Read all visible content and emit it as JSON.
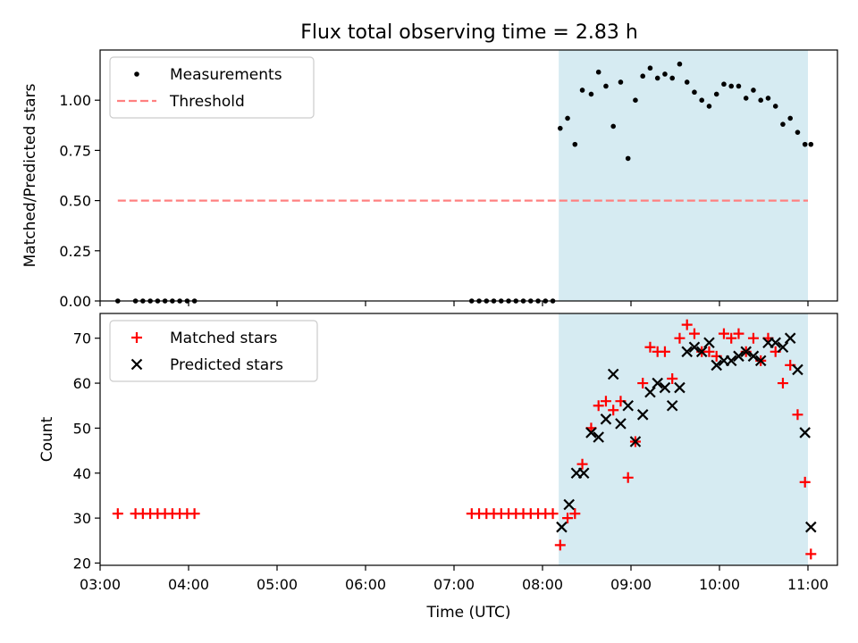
{
  "figure": {
    "title": "Flux total observing time = 2.83 h"
  },
  "colors": {
    "shade": "#add8e6",
    "matched": "#ff0000",
    "predicted": "#000000",
    "measurement": "#000000",
    "threshold": "#ff8080"
  },
  "chart_data": [
    {
      "type": "scatter",
      "title": "Flux total observing time = 2.83 h",
      "xlabel": "",
      "ylabel": "Matched/Predicted stars",
      "xlim": [
        "03:00",
        "11:20"
      ],
      "ylim": [
        0,
        1.25
      ],
      "yticks": [
        0.0,
        0.25,
        0.5,
        0.75,
        1.0
      ],
      "ytick_labels": [
        "0.00",
        "0.25",
        "0.50",
        "0.75",
        "1.00"
      ],
      "grid": false,
      "legend": "upper-left",
      "shaded_interval": [
        "08:11",
        "11:00"
      ],
      "series": [
        {
          "name": "Measurements",
          "marker": "dot",
          "x": [
            "03:12",
            "03:24",
            "03:29",
            "03:34",
            "03:39",
            "03:44",
            "03:49",
            "03:54",
            "03:59",
            "04:04",
            "07:12",
            "07:17",
            "07:22",
            "07:27",
            "07:32",
            "07:37",
            "07:42",
            "07:47",
            "07:52",
            "07:57",
            "08:02",
            "08:07",
            "08:12",
            "08:17",
            "08:22",
            "08:27",
            "08:33",
            "08:38",
            "08:43",
            "08:48",
            "08:53",
            "08:58",
            "09:03",
            "09:08",
            "09:13",
            "09:18",
            "09:23",
            "09:28",
            "09:33",
            "09:38",
            "09:43",
            "09:48",
            "09:53",
            "09:58",
            "10:03",
            "10:08",
            "10:13",
            "10:18",
            "10:23",
            "10:28",
            "10:33",
            "10:38",
            "10:43",
            "10:48",
            "10:53",
            "10:58",
            "11:02"
          ],
          "y": [
            0,
            0,
            0,
            0,
            0,
            0,
            0,
            0,
            0,
            0,
            0,
            0,
            0,
            0,
            0,
            0,
            0,
            0,
            0,
            0,
            0,
            0,
            0.86,
            0.91,
            0.78,
            1.05,
            1.03,
            1.14,
            1.07,
            0.87,
            1.09,
            0.71,
            1.0,
            1.12,
            1.16,
            1.11,
            1.13,
            1.11,
            1.18,
            1.09,
            1.04,
            1.0,
            0.97,
            1.03,
            1.08,
            1.07,
            1.07,
            1.01,
            1.05,
            1.0,
            1.01,
            0.97,
            0.88,
            0.91,
            0.84,
            0.78,
            0.78
          ]
        },
        {
          "name": "Threshold",
          "marker": "dashed-line",
          "x": [
            "03:12",
            "11:00"
          ],
          "y": [
            0.5,
            0.5
          ]
        }
      ]
    },
    {
      "type": "scatter",
      "xlabel": "Time (UTC)",
      "ylabel": "Count",
      "xlim": [
        "03:00",
        "11:20"
      ],
      "ylim": [
        19.5,
        75.5
      ],
      "xticks": [
        "03:00",
        "04:00",
        "05:00",
        "06:00",
        "07:00",
        "08:00",
        "09:00",
        "10:00",
        "11:00"
      ],
      "yticks": [
        20,
        30,
        40,
        50,
        60,
        70
      ],
      "grid": false,
      "legend": "upper-left",
      "shaded_interval": [
        "08:11",
        "11:00"
      ],
      "series": [
        {
          "name": "Matched stars",
          "marker": "plus",
          "x": [
            "03:12",
            "03:24",
            "03:29",
            "03:34",
            "03:39",
            "03:44",
            "03:49",
            "03:54",
            "03:59",
            "04:04",
            "07:12",
            "07:17",
            "07:22",
            "07:27",
            "07:32",
            "07:37",
            "07:42",
            "07:47",
            "07:52",
            "07:57",
            "08:02",
            "08:07",
            "08:12",
            "08:17",
            "08:22",
            "08:27",
            "08:33",
            "08:38",
            "08:43",
            "08:48",
            "08:53",
            "08:58",
            "09:03",
            "09:08",
            "09:13",
            "09:18",
            "09:23",
            "09:28",
            "09:33",
            "09:38",
            "09:43",
            "09:48",
            "09:53",
            "09:58",
            "10:03",
            "10:08",
            "10:13",
            "10:18",
            "10:23",
            "10:28",
            "10:33",
            "10:38",
            "10:43",
            "10:48",
            "10:53",
            "10:58",
            "11:02"
          ],
          "y": [
            31,
            31,
            31,
            31,
            31,
            31,
            31,
            31,
            31,
            31,
            31,
            31,
            31,
            31,
            31,
            31,
            31,
            31,
            31,
            31,
            31,
            31,
            24,
            30,
            31,
            42,
            50,
            55,
            56,
            54,
            56,
            39,
            47,
            60,
            68,
            67,
            67,
            61,
            70,
            73,
            71,
            67,
            67,
            66,
            71,
            70,
            71,
            67,
            70,
            65,
            70,
            67,
            60,
            64,
            53,
            38,
            22
          ]
        },
        {
          "name": "Predicted stars",
          "marker": "x",
          "x": [
            "08:13",
            "08:18",
            "08:23",
            "08:28",
            "08:33",
            "08:38",
            "08:43",
            "08:48",
            "08:53",
            "08:58",
            "09:03",
            "09:08",
            "09:13",
            "09:18",
            "09:23",
            "09:28",
            "09:33",
            "09:38",
            "09:43",
            "09:48",
            "09:53",
            "09:58",
            "10:03",
            "10:08",
            "10:13",
            "10:18",
            "10:23",
            "10:28",
            "10:33",
            "10:38",
            "10:43",
            "10:48",
            "10:53",
            "10:58",
            "11:02"
          ],
          "y": [
            28,
            33,
            40,
            40,
            49,
            48,
            52,
            62,
            51,
            55,
            47,
            53,
            58,
            60,
            59,
            55,
            59,
            67,
            68,
            67,
            69,
            64,
            65,
            65,
            66,
            67,
            66,
            65,
            69,
            69,
            68,
            70,
            63,
            49,
            28
          ]
        }
      ]
    }
  ]
}
